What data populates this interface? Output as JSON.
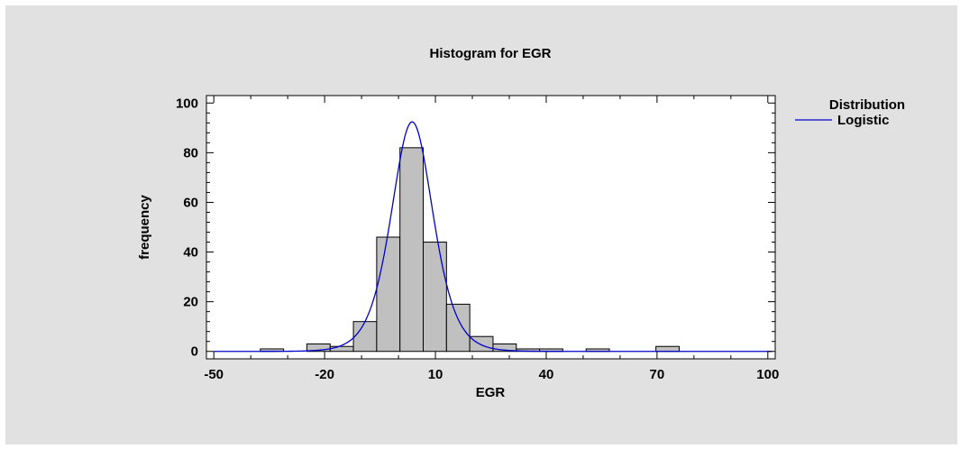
{
  "chart_data": {
    "type": "bar",
    "title": "Histogram for EGR",
    "xlabel": "EGR",
    "ylabel": "frequency",
    "xlim": [
      -52,
      102
    ],
    "ylim": [
      -3,
      103
    ],
    "x_ticks": [
      -50,
      -20,
      10,
      40,
      70,
      100
    ],
    "y_ticks": [
      0,
      20,
      40,
      60,
      80,
      100
    ],
    "bin_width": 6.3,
    "bins": [
      {
        "start": -50.0,
        "count": 0
      },
      {
        "start": -43.7,
        "count": 0
      },
      {
        "start": -37.4,
        "count": 1
      },
      {
        "start": -31.1,
        "count": 0
      },
      {
        "start": -24.8,
        "count": 3
      },
      {
        "start": -18.5,
        "count": 2
      },
      {
        "start": -12.2,
        "count": 12
      },
      {
        "start": -5.9,
        "count": 46
      },
      {
        "start": 0.4,
        "count": 82
      },
      {
        "start": 6.7,
        "count": 44
      },
      {
        "start": 13.0,
        "count": 19
      },
      {
        "start": 19.3,
        "count": 6
      },
      {
        "start": 25.6,
        "count": 3
      },
      {
        "start": 31.9,
        "count": 1
      },
      {
        "start": 38.2,
        "count": 1
      },
      {
        "start": 44.5,
        "count": 0
      },
      {
        "start": 50.8,
        "count": 1
      },
      {
        "start": 57.1,
        "count": 0
      },
      {
        "start": 63.4,
        "count": 0
      },
      {
        "start": 69.7,
        "count": 2
      },
      {
        "start": 76.0,
        "count": 0
      },
      {
        "start": 82.3,
        "count": 0
      },
      {
        "start": 88.6,
        "count": 0
      },
      {
        "start": 94.9,
        "count": 0
      }
    ],
    "series": [
      {
        "name": "Logistic",
        "type": "line",
        "color": "#0000cc",
        "location": 3.7,
        "scale": 3.8
      }
    ],
    "legend": {
      "title": "Distribution",
      "position": "right",
      "entries": [
        "Logistic"
      ]
    },
    "grid": false,
    "colors": {
      "bar_fill": "#c0c0c0",
      "bar_stroke": "#000000",
      "background": "#e1e1e1",
      "plot_background": "#ffffff"
    }
  }
}
